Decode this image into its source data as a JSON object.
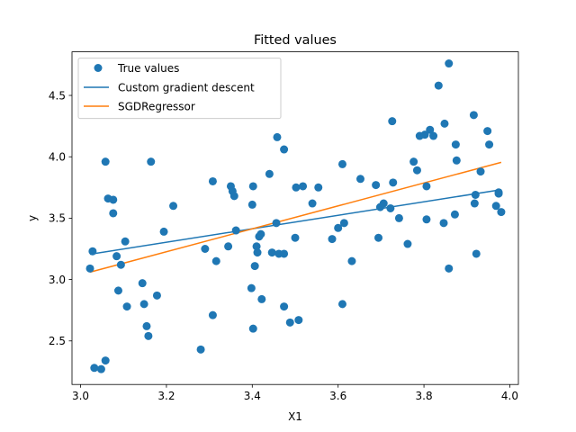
{
  "chart_data": {
    "type": "scatter",
    "title": "Fitted values",
    "xlabel": "X1",
    "ylabel": "y",
    "xlim": [
      2.98,
      4.02
    ],
    "ylim": [
      2.145,
      4.855
    ],
    "x_ticks": [
      3.0,
      3.2,
      3.4,
      3.6,
      3.8,
      4.0
    ],
    "x_tick_labels": [
      "3.0",
      "3.2",
      "3.4",
      "3.6",
      "3.8",
      "4.0"
    ],
    "y_ticks": [
      2.5,
      3.0,
      3.5,
      4.0,
      4.5
    ],
    "y_tick_labels": [
      "2.5",
      "3.0",
      "3.5",
      "4.0",
      "4.5"
    ],
    "grid": false,
    "legend_position": "top-left",
    "series": [
      {
        "name": "True values",
        "kind": "scatter",
        "color": "#1f77b4",
        "points": [
          [
            3.022,
            3.09
          ],
          [
            3.028,
            3.23
          ],
          [
            3.032,
            2.28
          ],
          [
            3.048,
            2.27
          ],
          [
            3.058,
            2.34
          ],
          [
            3.058,
            3.96
          ],
          [
            3.064,
            3.66
          ],
          [
            3.076,
            3.65
          ],
          [
            3.076,
            3.54
          ],
          [
            3.084,
            3.19
          ],
          [
            3.088,
            2.91
          ],
          [
            3.094,
            3.12
          ],
          [
            3.104,
            3.31
          ],
          [
            3.108,
            2.78
          ],
          [
            3.144,
            2.97
          ],
          [
            3.148,
            2.8
          ],
          [
            3.154,
            2.62
          ],
          [
            3.158,
            2.54
          ],
          [
            3.164,
            3.96
          ],
          [
            3.178,
            2.87
          ],
          [
            3.194,
            3.39
          ],
          [
            3.216,
            3.6
          ],
          [
            3.28,
            2.43
          ],
          [
            3.29,
            3.25
          ],
          [
            3.308,
            3.8
          ],
          [
            3.308,
            2.71
          ],
          [
            3.316,
            3.15
          ],
          [
            3.344,
            3.27
          ],
          [
            3.35,
            3.76
          ],
          [
            3.354,
            3.72
          ],
          [
            3.358,
            3.68
          ],
          [
            3.362,
            3.4
          ],
          [
            3.398,
            2.93
          ],
          [
            3.4,
            3.61
          ],
          [
            3.402,
            3.76
          ],
          [
            3.402,
            2.6
          ],
          [
            3.406,
            3.11
          ],
          [
            3.41,
            3.27
          ],
          [
            3.412,
            3.22
          ],
          [
            3.416,
            3.35
          ],
          [
            3.42,
            3.37
          ],
          [
            3.422,
            2.84
          ],
          [
            3.44,
            3.86
          ],
          [
            3.446,
            3.22
          ],
          [
            3.456,
            3.46
          ],
          [
            3.458,
            4.16
          ],
          [
            3.462,
            3.21
          ],
          [
            3.474,
            2.78
          ],
          [
            3.474,
            4.06
          ],
          [
            3.474,
            3.21
          ],
          [
            3.488,
            2.65
          ],
          [
            3.502,
            3.75
          ],
          [
            3.5,
            3.34
          ],
          [
            3.508,
            2.67
          ],
          [
            3.518,
            3.76
          ],
          [
            3.54,
            3.62
          ],
          [
            3.554,
            3.75
          ],
          [
            3.586,
            3.33
          ],
          [
            3.6,
            3.42
          ],
          [
            3.61,
            3.94
          ],
          [
            3.61,
            2.8
          ],
          [
            3.614,
            3.46
          ],
          [
            3.632,
            3.15
          ],
          [
            3.652,
            3.82
          ],
          [
            3.688,
            3.77
          ],
          [
            3.694,
            3.34
          ],
          [
            3.698,
            3.59
          ],
          [
            3.706,
            3.62
          ],
          [
            3.722,
            3.58
          ],
          [
            3.726,
            4.29
          ],
          [
            3.728,
            3.79
          ],
          [
            3.742,
            3.5
          ],
          [
            3.762,
            3.29
          ],
          [
            3.776,
            3.96
          ],
          [
            3.784,
            3.89
          ],
          [
            3.79,
            4.17
          ],
          [
            3.802,
            4.18
          ],
          [
            3.806,
            3.76
          ],
          [
            3.806,
            3.49
          ],
          [
            3.814,
            4.22
          ],
          [
            3.822,
            4.17
          ],
          [
            3.834,
            4.58
          ],
          [
            3.846,
            3.46
          ],
          [
            3.848,
            4.27
          ],
          [
            3.858,
            4.76
          ],
          [
            3.858,
            3.09
          ],
          [
            3.872,
            3.53
          ],
          [
            3.874,
            4.1
          ],
          [
            3.876,
            3.97
          ],
          [
            3.916,
            4.34
          ],
          [
            3.918,
            3.62
          ],
          [
            3.92,
            3.69
          ],
          [
            3.922,
            3.21
          ],
          [
            3.932,
            3.88
          ],
          [
            3.948,
            4.21
          ],
          [
            3.952,
            4.1
          ],
          [
            3.968,
            3.6
          ],
          [
            3.974,
            3.7
          ],
          [
            3.974,
            3.71
          ],
          [
            3.98,
            3.55
          ]
        ]
      },
      {
        "name": "Custom gradient descent",
        "kind": "line",
        "color": "#1f77b4",
        "points": [
          [
            3.022,
            3.206
          ],
          [
            3.98,
            3.732
          ]
        ]
      },
      {
        "name": "SGDRegressor",
        "kind": "line",
        "color": "#ff7f0e",
        "points": [
          [
            3.022,
            3.06
          ],
          [
            3.98,
            3.955
          ]
        ]
      }
    ]
  }
}
